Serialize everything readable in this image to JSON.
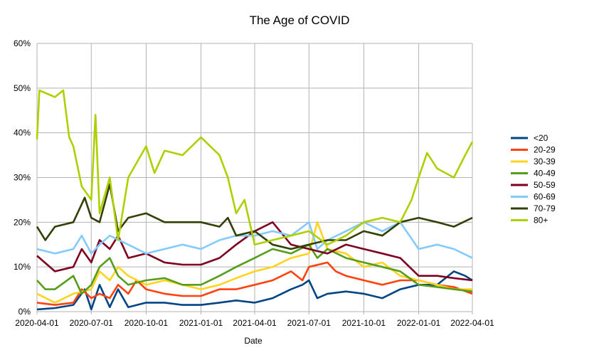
{
  "chart_data": {
    "type": "line",
    "title": "The Age of COVID",
    "xlabel": "Date",
    "ylabel": "",
    "x_type": "date",
    "x_range": [
      "2020-04-01",
      "2022-04-01"
    ],
    "x_ticks": [
      "2020-04-01",
      "2020-07-01",
      "2020-10-01",
      "2021-01-01",
      "2021-04-01",
      "2021-07-01",
      "2021-10-01",
      "2022-01-01",
      "2022-04-01"
    ],
    "ylim": [
      0,
      60
    ],
    "y_ticks": [
      "0%",
      "10%",
      "20%",
      "30%",
      "40%",
      "50%",
      "60%"
    ],
    "grid": "both",
    "legend_position": "right",
    "series": [
      {
        "name": "<20",
        "color": "#004586",
        "points": [
          [
            "2020-04-01",
            0.5
          ],
          [
            "2020-05-01",
            0.8
          ],
          [
            "2020-06-01",
            1.5
          ],
          [
            "2020-06-20",
            5
          ],
          [
            "2020-07-01",
            0.5
          ],
          [
            "2020-07-15",
            6
          ],
          [
            "2020-08-01",
            1
          ],
          [
            "2020-08-15",
            5
          ],
          [
            "2020-09-01",
            1
          ],
          [
            "2020-10-01",
            2
          ],
          [
            "2020-11-01",
            2
          ],
          [
            "2020-12-01",
            1.5
          ],
          [
            "2021-01-01",
            1.5
          ],
          [
            "2021-02-01",
            2
          ],
          [
            "2021-03-01",
            2.5
          ],
          [
            "2021-04-01",
            2
          ],
          [
            "2021-05-01",
            3
          ],
          [
            "2021-06-01",
            5
          ],
          [
            "2021-06-20",
            6
          ],
          [
            "2021-07-01",
            7
          ],
          [
            "2021-07-15",
            3
          ],
          [
            "2021-08-01",
            4
          ],
          [
            "2021-09-01",
            4.5
          ],
          [
            "2021-10-01",
            4
          ],
          [
            "2021-11-01",
            3
          ],
          [
            "2021-12-01",
            5
          ],
          [
            "2022-01-01",
            6
          ],
          [
            "2022-02-01",
            6
          ],
          [
            "2022-03-01",
            9
          ],
          [
            "2022-03-20",
            8
          ],
          [
            "2022-04-01",
            7
          ]
        ]
      },
      {
        "name": "20-29",
        "color": "#ff420e",
        "points": [
          [
            "2020-04-01",
            2
          ],
          [
            "2020-05-01",
            1.5
          ],
          [
            "2020-06-01",
            2
          ],
          [
            "2020-06-15",
            5
          ],
          [
            "2020-07-01",
            3
          ],
          [
            "2020-07-15",
            4
          ],
          [
            "2020-08-01",
            3
          ],
          [
            "2020-08-15",
            6
          ],
          [
            "2020-09-01",
            4
          ],
          [
            "2020-09-15",
            7
          ],
          [
            "2020-10-01",
            5
          ],
          [
            "2020-11-01",
            4
          ],
          [
            "2020-12-01",
            3.5
          ],
          [
            "2021-01-01",
            3.5
          ],
          [
            "2021-02-01",
            5
          ],
          [
            "2021-03-01",
            5
          ],
          [
            "2021-04-01",
            6
          ],
          [
            "2021-05-01",
            7
          ],
          [
            "2021-06-01",
            9
          ],
          [
            "2021-06-20",
            7
          ],
          [
            "2021-07-01",
            10
          ],
          [
            "2021-08-01",
            11
          ],
          [
            "2021-08-15",
            9
          ],
          [
            "2021-09-01",
            8
          ],
          [
            "2021-10-01",
            7
          ],
          [
            "2021-11-01",
            6
          ],
          [
            "2021-12-01",
            7
          ],
          [
            "2022-01-01",
            7
          ],
          [
            "2022-02-01",
            6
          ],
          [
            "2022-03-01",
            5.5
          ],
          [
            "2022-04-01",
            4
          ]
        ]
      },
      {
        "name": "30-39",
        "color": "#ffd320",
        "points": [
          [
            "2020-04-01",
            4
          ],
          [
            "2020-05-01",
            2
          ],
          [
            "2020-06-01",
            4
          ],
          [
            "2020-07-01",
            5
          ],
          [
            "2020-07-15",
            9
          ],
          [
            "2020-08-01",
            7
          ],
          [
            "2020-08-15",
            10
          ],
          [
            "2020-09-01",
            8
          ],
          [
            "2020-10-01",
            6
          ],
          [
            "2020-11-01",
            7
          ],
          [
            "2020-12-01",
            6
          ],
          [
            "2021-01-01",
            5
          ],
          [
            "2021-02-01",
            6
          ],
          [
            "2021-03-01",
            7.5
          ],
          [
            "2021-04-01",
            9
          ],
          [
            "2021-05-01",
            10
          ],
          [
            "2021-06-01",
            12
          ],
          [
            "2021-07-01",
            13
          ],
          [
            "2021-07-15",
            20
          ],
          [
            "2021-08-01",
            14
          ],
          [
            "2021-09-01",
            13
          ],
          [
            "2021-10-01",
            10
          ],
          [
            "2021-11-01",
            11
          ],
          [
            "2021-12-01",
            8
          ],
          [
            "2022-01-01",
            7
          ],
          [
            "2022-02-01",
            6
          ],
          [
            "2022-03-01",
            5
          ],
          [
            "2022-04-01",
            5
          ]
        ]
      },
      {
        "name": "40-49",
        "color": "#579d1c",
        "points": [
          [
            "2020-04-01",
            7
          ],
          [
            "2020-04-15",
            5
          ],
          [
            "2020-05-01",
            5
          ],
          [
            "2020-06-01",
            8
          ],
          [
            "2020-06-15",
            4
          ],
          [
            "2020-07-01",
            6
          ],
          [
            "2020-07-15",
            10
          ],
          [
            "2020-08-01",
            12
          ],
          [
            "2020-08-15",
            8
          ],
          [
            "2020-09-01",
            6
          ],
          [
            "2020-10-01",
            7
          ],
          [
            "2020-11-01",
            7.5
          ],
          [
            "2020-12-01",
            6
          ],
          [
            "2021-01-01",
            6
          ],
          [
            "2021-02-01",
            8
          ],
          [
            "2021-03-01",
            10
          ],
          [
            "2021-04-01",
            12
          ],
          [
            "2021-05-01",
            14
          ],
          [
            "2021-06-01",
            13
          ],
          [
            "2021-07-01",
            15
          ],
          [
            "2021-07-15",
            12
          ],
          [
            "2021-08-01",
            14
          ],
          [
            "2021-09-01",
            12
          ],
          [
            "2021-10-01",
            11
          ],
          [
            "2021-11-01",
            10
          ],
          [
            "2021-12-01",
            9
          ],
          [
            "2022-01-01",
            6
          ],
          [
            "2022-02-01",
            5.5
          ],
          [
            "2022-03-01",
            5
          ],
          [
            "2022-04-01",
            4.5
          ]
        ]
      },
      {
        "name": "50-59",
        "color": "#7e0021",
        "points": [
          [
            "2020-04-01",
            12.5
          ],
          [
            "2020-05-01",
            9
          ],
          [
            "2020-06-01",
            10
          ],
          [
            "2020-06-15",
            14
          ],
          [
            "2020-07-01",
            11
          ],
          [
            "2020-07-15",
            16
          ],
          [
            "2020-08-01",
            14
          ],
          [
            "2020-08-15",
            17
          ],
          [
            "2020-09-01",
            12
          ],
          [
            "2020-10-01",
            13
          ],
          [
            "2020-11-01",
            11
          ],
          [
            "2020-12-01",
            10.5
          ],
          [
            "2021-01-01",
            10.5
          ],
          [
            "2021-02-01",
            12
          ],
          [
            "2021-03-01",
            15
          ],
          [
            "2021-04-01",
            18
          ],
          [
            "2021-05-01",
            20
          ],
          [
            "2021-06-01",
            15
          ],
          [
            "2021-07-01",
            14
          ],
          [
            "2021-08-01",
            13
          ],
          [
            "2021-09-01",
            15
          ],
          [
            "2021-10-01",
            14
          ],
          [
            "2021-11-01",
            13
          ],
          [
            "2021-12-01",
            12
          ],
          [
            "2022-01-01",
            8
          ],
          [
            "2022-02-01",
            8
          ],
          [
            "2022-03-01",
            7.5
          ],
          [
            "2022-04-01",
            7
          ]
        ]
      },
      {
        "name": "60-69",
        "color": "#83caff",
        "points": [
          [
            "2020-04-01",
            14
          ],
          [
            "2020-05-01",
            13
          ],
          [
            "2020-06-01",
            14
          ],
          [
            "2020-06-15",
            17
          ],
          [
            "2020-07-01",
            13
          ],
          [
            "2020-07-15",
            15
          ],
          [
            "2020-08-01",
            17
          ],
          [
            "2020-09-01",
            15
          ],
          [
            "2020-10-01",
            13
          ],
          [
            "2020-11-01",
            14
          ],
          [
            "2020-12-01",
            15
          ],
          [
            "2021-01-01",
            14
          ],
          [
            "2021-02-01",
            16
          ],
          [
            "2021-03-01",
            17
          ],
          [
            "2021-04-01",
            17
          ],
          [
            "2021-05-01",
            18
          ],
          [
            "2021-06-01",
            17
          ],
          [
            "2021-07-01",
            20
          ],
          [
            "2021-07-15",
            14
          ],
          [
            "2021-08-01",
            16
          ],
          [
            "2021-09-01",
            18
          ],
          [
            "2021-10-01",
            20
          ],
          [
            "2021-11-01",
            18
          ],
          [
            "2021-12-01",
            20
          ],
          [
            "2022-01-01",
            14
          ],
          [
            "2022-02-01",
            15
          ],
          [
            "2022-03-01",
            14
          ],
          [
            "2022-04-01",
            12
          ]
        ]
      },
      {
        "name": "70-79",
        "color": "#314004",
        "points": [
          [
            "2020-04-01",
            19
          ],
          [
            "2020-04-15",
            16
          ],
          [
            "2020-05-01",
            19
          ],
          [
            "2020-06-01",
            20
          ],
          [
            "2020-06-20",
            25.5
          ],
          [
            "2020-07-01",
            21
          ],
          [
            "2020-07-15",
            20
          ],
          [
            "2020-08-01",
            28.5
          ],
          [
            "2020-08-15",
            18
          ],
          [
            "2020-09-01",
            21
          ],
          [
            "2020-10-01",
            22
          ],
          [
            "2020-11-01",
            20
          ],
          [
            "2020-12-01",
            20
          ],
          [
            "2021-01-01",
            20
          ],
          [
            "2021-02-01",
            19
          ],
          [
            "2021-02-15",
            21
          ],
          [
            "2021-03-01",
            17
          ],
          [
            "2021-04-01",
            18
          ],
          [
            "2021-05-01",
            15
          ],
          [
            "2021-06-01",
            14
          ],
          [
            "2021-07-01",
            15
          ],
          [
            "2021-08-01",
            16
          ],
          [
            "2021-09-01",
            16
          ],
          [
            "2021-10-01",
            18
          ],
          [
            "2021-11-01",
            17
          ],
          [
            "2021-12-01",
            20
          ],
          [
            "2022-01-01",
            21
          ],
          [
            "2022-02-01",
            20
          ],
          [
            "2022-03-01",
            19
          ],
          [
            "2022-04-01",
            21
          ]
        ]
      },
      {
        "name": "80+",
        "color": "#aecf00",
        "points": [
          [
            "2020-04-01",
            38.5
          ],
          [
            "2020-04-05",
            49.5
          ],
          [
            "2020-05-01",
            48
          ],
          [
            "2020-05-15",
            49.5
          ],
          [
            "2020-05-25",
            39
          ],
          [
            "2020-06-01",
            37
          ],
          [
            "2020-06-15",
            28
          ],
          [
            "2020-07-01",
            25
          ],
          [
            "2020-07-08",
            44
          ],
          [
            "2020-07-15",
            22
          ],
          [
            "2020-08-01",
            30
          ],
          [
            "2020-08-15",
            16
          ],
          [
            "2020-09-01",
            30
          ],
          [
            "2020-10-01",
            37
          ],
          [
            "2020-10-15",
            31
          ],
          [
            "2020-11-01",
            36
          ],
          [
            "2020-12-01",
            35
          ],
          [
            "2021-01-01",
            39
          ],
          [
            "2021-02-01",
            35
          ],
          [
            "2021-02-15",
            30
          ],
          [
            "2021-03-01",
            22
          ],
          [
            "2021-03-15",
            25
          ],
          [
            "2021-04-01",
            15
          ],
          [
            "2021-05-01",
            16
          ],
          [
            "2021-06-01",
            17
          ],
          [
            "2021-07-01",
            18
          ],
          [
            "2021-08-01",
            15
          ],
          [
            "2021-09-01",
            17
          ],
          [
            "2021-10-01",
            20
          ],
          [
            "2021-11-01",
            21
          ],
          [
            "2021-12-01",
            20
          ],
          [
            "2021-12-20",
            25
          ],
          [
            "2022-01-01",
            30
          ],
          [
            "2022-01-15",
            35.5
          ],
          [
            "2022-02-01",
            32
          ],
          [
            "2022-03-01",
            30
          ],
          [
            "2022-03-20",
            35
          ],
          [
            "2022-04-01",
            38
          ]
        ]
      }
    ]
  }
}
